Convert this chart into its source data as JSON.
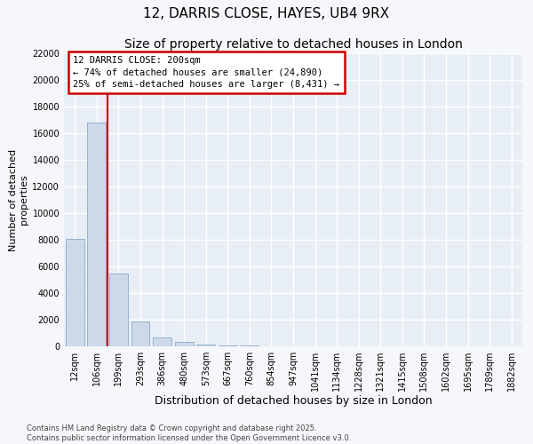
{
  "title_line1": "12, DARRIS CLOSE, HAYES, UB4 9RX",
  "title_line2": "Size of property relative to detached houses in London",
  "xlabel": "Distribution of detached houses by size in London",
  "ylabel": "Number of detached\nproperties",
  "categories": [
    "12sqm",
    "106sqm",
    "199sqm",
    "293sqm",
    "386sqm",
    "480sqm",
    "573sqm",
    "667sqm",
    "760sqm",
    "854sqm",
    "947sqm",
    "1041sqm",
    "1134sqm",
    "1228sqm",
    "1321sqm",
    "1415sqm",
    "1508sqm",
    "1602sqm",
    "1695sqm",
    "1789sqm",
    "1882sqm"
  ],
  "values": [
    8100,
    16800,
    5500,
    1850,
    700,
    350,
    150,
    100,
    50,
    0,
    0,
    0,
    0,
    0,
    0,
    0,
    0,
    0,
    0,
    0,
    0
  ],
  "bar_color": "#ccd9e8",
  "bar_edge_color": "#8aaac8",
  "vline_x": 1.5,
  "vline_color": "#cc0000",
  "ylim": [
    0,
    22000
  ],
  "yticks": [
    0,
    2000,
    4000,
    6000,
    8000,
    10000,
    12000,
    14000,
    16000,
    18000,
    20000,
    22000
  ],
  "annotation_title": "12 DARRIS CLOSE: 200sqm",
  "annotation_line1": "← 74% of detached houses are smaller (24,890)",
  "annotation_line2": "25% of semi-detached houses are larger (8,431) →",
  "annotation_box_color": "#cc0000",
  "footer_line1": "Contains HM Land Registry data © Crown copyright and database right 2025.",
  "footer_line2": "Contains public sector information licensed under the Open Government Licence v3.0.",
  "plot_bg_color": "#e8eef5",
  "fig_bg_color": "#f5f7fa",
  "grid_color": "#ffffff",
  "title_fontsize": 11,
  "subtitle_fontsize": 10,
  "tick_fontsize": 7,
  "ylabel_fontsize": 8,
  "xlabel_fontsize": 9
}
